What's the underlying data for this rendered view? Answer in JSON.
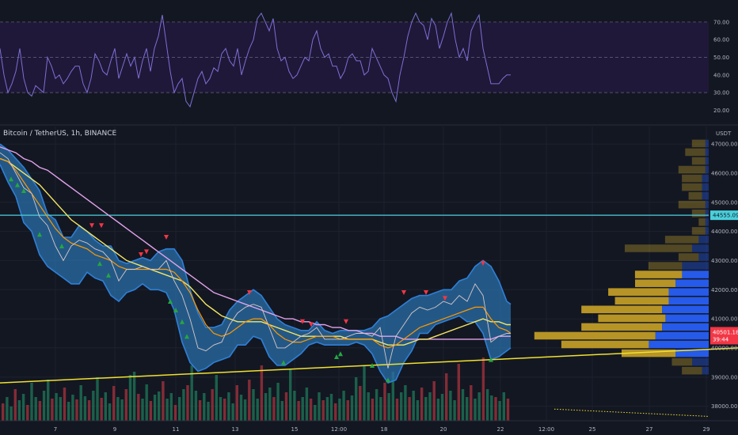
{
  "symbol_title": "Bitcoin / TetherUS, 1h, BINANCE",
  "currency": "USDT",
  "colors": {
    "background": "#131722",
    "rsi_band": "#1f1838",
    "rsi_line": "#7e6fd6",
    "bollinger_fill": "#2a6fa8",
    "bollinger_edge": "#2f7fd6",
    "ema_fast": "#ff9800",
    "ema_slow": "#f5e663",
    "ma_long": "#e1a2e9",
    "trendline": "#f0e130",
    "support_line": "#4ad0dc",
    "up_signal": "#26a641",
    "down_signal": "#f23645",
    "vp_up": "#c9a227",
    "vp_down": "#2962ff",
    "last_price": "#f23645"
  },
  "chart_data": [
    {
      "type": "line",
      "name": "RSI",
      "yticks": [
        70.0,
        60.0,
        50.0,
        40.0,
        30.0,
        20.0
      ],
      "ytick_labels": [
        "70.00",
        "60.00",
        "50.00",
        "40.00",
        "30.00",
        "20.00"
      ],
      "ylim": [
        13,
        78
      ],
      "bands": [
        70,
        50,
        30
      ],
      "x": [
        0,
        5,
        10,
        15,
        20,
        25,
        30,
        35,
        40,
        45,
        50,
        55,
        60,
        65,
        70,
        75,
        80,
        85,
        90,
        95,
        100,
        105,
        110,
        115,
        120,
        125,
        130,
        135,
        140,
        145,
        150,
        155,
        160,
        165,
        170,
        175,
        180,
        185,
        190,
        195,
        200,
        205,
        210,
        215,
        220,
        225,
        230,
        235,
        240,
        245,
        250,
        255,
        260,
        265,
        270,
        275,
        280,
        285,
        290,
        295,
        300,
        305,
        310,
        315,
        320,
        325,
        330,
        335,
        340,
        345,
        350,
        355,
        360,
        365,
        370,
        375,
        380,
        385,
        390,
        395,
        400,
        405,
        410,
        415,
        420,
        425,
        430,
        435,
        440,
        445,
        450,
        455,
        460,
        465,
        470,
        475,
        480,
        485,
        490,
        495,
        500,
        505,
        510,
        515,
        520,
        525,
        530,
        535,
        540,
        545,
        550,
        555,
        560,
        565,
        570,
        575,
        580,
        585,
        590,
        595,
        600,
        605,
        610,
        615,
        620,
        625,
        630,
        635,
        640,
        645
      ],
      "values": [
        55,
        40,
        30,
        35,
        42,
        55,
        38,
        30,
        28,
        34,
        32,
        30,
        50,
        45,
        38,
        40,
        35,
        38,
        42,
        45,
        45,
        35,
        30,
        38,
        52,
        48,
        42,
        40,
        48,
        55,
        38,
        45,
        52,
        45,
        50,
        38,
        48,
        55,
        42,
        55,
        62,
        74,
        58,
        42,
        30,
        35,
        38,
        25,
        22,
        30,
        38,
        42,
        35,
        38,
        44,
        42,
        52,
        55,
        48,
        45,
        55,
        40,
        48,
        55,
        60,
        72,
        75,
        70,
        65,
        72,
        55,
        48,
        50,
        42,
        38,
        40,
        45,
        50,
        48,
        60,
        65,
        55,
        50,
        52,
        45,
        45,
        38,
        42,
        50,
        52,
        48,
        48,
        40,
        42,
        55,
        50,
        45,
        40,
        38,
        30,
        25,
        40,
        50,
        62,
        70,
        75,
        70,
        68,
        60,
        72,
        68,
        55,
        62,
        70,
        75,
        60,
        50,
        55,
        48,
        65,
        70,
        74,
        55,
        45,
        35,
        35,
        35,
        38,
        40,
        40
      ]
    },
    {
      "type": "line",
      "name": "BTCUSDT",
      "yticks": [
        47000,
        46000,
        45000,
        44000,
        43000,
        42000,
        41000,
        40000,
        39000,
        38000
      ],
      "ytick_labels": [
        "47000.00",
        "46000.00",
        "45000.00",
        "44000.00",
        "43000.00",
        "42000.00",
        "41000.00",
        "40000.00",
        "39000.00",
        "38000.00"
      ],
      "ylim": [
        37500,
        47600
      ],
      "xticks": [
        70,
        145,
        222,
        297,
        372,
        428,
        485,
        560,
        632,
        690,
        748,
        820,
        892
      ],
      "xtick_labels": [
        "7",
        "9",
        "11",
        "13",
        "15",
        "12:00",
        "18",
        "20",
        "22",
        "12:00",
        "25",
        "27",
        "29"
      ],
      "support_level": 44555.09,
      "support_label": "44555.09",
      "last_price_label": "40501.18",
      "countdown_label": "39:44",
      "x": [
        0,
        10,
        20,
        30,
        40,
        50,
        60,
        70,
        80,
        90,
        100,
        110,
        120,
        130,
        140,
        150,
        160,
        170,
        180,
        190,
        200,
        210,
        220,
        230,
        240,
        250,
        260,
        270,
        280,
        290,
        300,
        310,
        320,
        330,
        340,
        350,
        360,
        370,
        380,
        390,
        400,
        410,
        420,
        430,
        440,
        450,
        460,
        470,
        480,
        490,
        500,
        510,
        520,
        530,
        540,
        550,
        560,
        570,
        580,
        590,
        600,
        610,
        620,
        630,
        640,
        645
      ],
      "price": [
        46700,
        46500,
        46000,
        45500,
        45300,
        44500,
        44200,
        43500,
        43000,
        43500,
        43700,
        43600,
        43400,
        43300,
        43000,
        42300,
        42700,
        42700,
        42800,
        42700,
        42700,
        43000,
        42300,
        41800,
        41000,
        40000,
        39900,
        40100,
        40200,
        40800,
        41200,
        41400,
        41500,
        41400,
        40700,
        40000,
        40000,
        40200,
        40400,
        40500,
        40700,
        40300,
        40300,
        40300,
        40400,
        40500,
        40500,
        40400,
        40700,
        39300,
        40400,
        40800,
        41200,
        41400,
        41300,
        41400,
        41600,
        41500,
        41800,
        41600,
        42200,
        41800,
        40200,
        40400,
        40500,
        40500
      ],
      "bb_upper": [
        47000,
        46800,
        46500,
        46200,
        45800,
        45400,
        44600,
        44400,
        43800,
        43800,
        44200,
        44000,
        43700,
        43500,
        43500,
        43000,
        42900,
        43000,
        43100,
        43000,
        43300,
        43400,
        43400,
        43000,
        42000,
        41200,
        40700,
        40700,
        40800,
        41300,
        41600,
        41800,
        42000,
        41800,
        41400,
        41000,
        40800,
        40700,
        40600,
        40600,
        40900,
        40600,
        40500,
        40600,
        40600,
        40600,
        40600,
        40700,
        41000,
        41100,
        41300,
        41500,
        41700,
        41800,
        41800,
        41900,
        42000,
        42000,
        42300,
        42400,
        42800,
        43000,
        42800,
        42300,
        41600,
        41500
      ],
      "bb_lower": [
        46300,
        45700,
        45200,
        44300,
        44000,
        43200,
        42800,
        42600,
        42400,
        42200,
        42200,
        42600,
        42400,
        42300,
        41800,
        41600,
        41900,
        42000,
        42200,
        42000,
        42000,
        41900,
        41300,
        40200,
        39500,
        39200,
        39300,
        39500,
        39600,
        39700,
        40100,
        40100,
        40400,
        40300,
        39700,
        39400,
        39400,
        39600,
        39800,
        40100,
        40200,
        40100,
        40100,
        40100,
        40100,
        40200,
        40100,
        39800,
        39200,
        38800,
        38900,
        39500,
        39900,
        40500,
        40500,
        40800,
        40900,
        41000,
        41100,
        40900,
        40900,
        40500,
        39600,
        39700,
        39900,
        40000
      ],
      "ema_fast": [
        46500,
        46400,
        46100,
        45700,
        45300,
        44900,
        44500,
        44100,
        43800,
        43600,
        43500,
        43400,
        43200,
        43100,
        43000,
        42800,
        42700,
        42700,
        42700,
        42700,
        42700,
        42700,
        42600,
        42300,
        41900,
        41300,
        40800,
        40500,
        40400,
        40500,
        40700,
        40900,
        41000,
        41000,
        40800,
        40500,
        40300,
        40200,
        40200,
        40300,
        40400,
        40400,
        40400,
        40300,
        40300,
        40300,
        40300,
        40300,
        40100,
        40000,
        40100,
        40300,
        40500,
        40700,
        40800,
        40900,
        41000,
        41100,
        41200,
        41300,
        41400,
        41400,
        41000,
        40700,
        40600,
        40500
      ],
      "ema_slow": [
        46500,
        46400,
        46200,
        46000,
        45800,
        45600,
        45300,
        45000,
        44700,
        44400,
        44200,
        44000,
        43800,
        43600,
        43400,
        43200,
        43000,
        42900,
        42800,
        42700,
        42600,
        42500,
        42400,
        42300,
        42100,
        41800,
        41500,
        41300,
        41100,
        41000,
        40900,
        40900,
        40900,
        40900,
        40800,
        40700,
        40600,
        40500,
        40400,
        40400,
        40400,
        40400,
        40400,
        40400,
        40300,
        40300,
        40300,
        40300,
        40200,
        40100,
        40100,
        40100,
        40200,
        40300,
        40300,
        40400,
        40500,
        40600,
        40700,
        40800,
        40900,
        41000,
        40900,
        40900,
        40800,
        40800
      ],
      "ma_long": [
        46900,
        46800,
        46700,
        46500,
        46400,
        46200,
        46100,
        45900,
        45700,
        45500,
        45300,
        45100,
        44900,
        44700,
        44500,
        44300,
        44100,
        43900,
        43700,
        43500,
        43300,
        43100,
        42900,
        42700,
        42500,
        42300,
        42100,
        41900,
        41800,
        41700,
        41600,
        41500,
        41400,
        41300,
        41200,
        41100,
        41000,
        41000,
        40900,
        40900,
        40800,
        40800,
        40700,
        40700,
        40600,
        40600,
        40500,
        40500,
        40400,
        40400,
        40400,
        40300,
        40300,
        40300,
        40300,
        40300,
        40300,
        40300,
        40300,
        40300,
        40300,
        40300,
        40300,
        40400,
        40400,
        40400
      ],
      "trendline": {
        "x": [
          0,
          932
        ],
        "y": [
          38800,
          40000
        ]
      },
      "buy_signals_x": [
        14,
        22,
        30,
        50,
        78,
        126,
        137,
        215,
        222,
        230,
        236,
        358,
        425,
        430,
        470,
        490,
        620
      ],
      "buy_signals_y": [
        45800,
        45600,
        45400,
        43900,
        43500,
        42900,
        42500,
        41600,
        41300,
        40900,
        40400,
        39500,
        39700,
        39800,
        39400,
        38900,
        39600
      ],
      "sell_signals_x": [
        116,
        128,
        178,
        185,
        210,
        315,
        382,
        393,
        437,
        510,
        538,
        562,
        610
      ],
      "sell_signals_y": [
        44200,
        44200,
        43200,
        43300,
        43800,
        41900,
        40900,
        40800,
        40900,
        41900,
        41900,
        41700,
        42900
      ],
      "volume_profile": {
        "price_levels": [
          47000,
          46700,
          46400,
          46100,
          45800,
          45500,
          45200,
          44900,
          44600,
          44300,
          44000,
          43700,
          43400,
          43100,
          42800,
          42500,
          42200,
          41900,
          41600,
          41300,
          41000,
          40700,
          40400,
          40100,
          39800,
          39500,
          39200
        ],
        "buy_volume": [
          2,
          3,
          2,
          4,
          3,
          3,
          2,
          4,
          2,
          1,
          2,
          5,
          10,
          3,
          5,
          7,
          6,
          9,
          8,
          12,
          10,
          12,
          18,
          13,
          8,
          3,
          3
        ],
        "sell_volume": [
          1,
          1,
          1,
          1,
          2,
          2,
          2,
          1,
          1,
          1,
          1,
          3,
          5,
          3,
          8,
          8,
          10,
          12,
          12,
          14,
          13,
          14,
          16,
          18,
          10,
          5,
          2
        ]
      },
      "volume_bars": [
        22,
        30,
        18,
        40,
        26,
        34,
        20,
        48,
        30,
        25,
        38,
        52,
        28,
        35,
        30,
        42,
        24,
        33,
        27,
        45,
        31,
        26,
        38,
        55,
        29,
        36,
        22,
        44,
        30,
        27,
        40,
        58,
        62,
        34,
        28,
        46,
        25,
        33,
        37,
        50,
        28,
        35,
        20,
        30,
        40,
        45,
        70,
        38,
        26,
        35,
        24,
        40,
        58,
        30,
        28,
        36,
        22,
        45,
        33,
        27,
        52,
        40,
        28,
        70,
        35,
        42,
        30,
        48,
        25,
        36,
        66,
        38,
        25,
        30,
        42,
        28,
        20,
        36,
        26,
        30,
        34,
        22,
        28,
        38,
        26,
        32,
        55,
        44,
        70,
        36,
        28,
        40,
        30,
        48,
        35,
        62,
        28,
        36,
        45,
        30,
        38,
        26,
        42,
        30,
        36,
        50,
        28,
        34,
        60,
        38,
        26,
        72,
        40,
        30,
        45,
        28,
        36,
        80,
        40,
        32,
        30,
        25,
        36,
        28
      ]
    }
  ]
}
